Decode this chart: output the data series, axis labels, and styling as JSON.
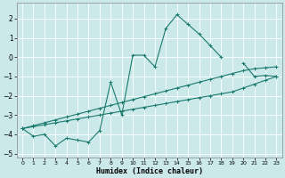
{
  "xlabel": "Humidex (Indice chaleur)",
  "xlim": [
    -0.5,
    23.5
  ],
  "ylim": [
    -5.2,
    2.8
  ],
  "yticks": [
    -5,
    -4,
    -3,
    -2,
    -1,
    0,
    1,
    2
  ],
  "xticks": [
    0,
    1,
    2,
    3,
    4,
    5,
    6,
    7,
    8,
    9,
    10,
    11,
    12,
    13,
    14,
    15,
    16,
    17,
    18,
    19,
    20,
    21,
    22,
    23
  ],
  "background_color": "#cce9e9",
  "grid_color": "#afd8d8",
  "line_color": "#1a7a6e",
  "series": [
    {
      "x": [
        0,
        1,
        2,
        3,
        4,
        5,
        6,
        7,
        8,
        9,
        10,
        11,
        12,
        13,
        14,
        15,
        16,
        17,
        18,
        19,
        20,
        21,
        22,
        23
      ],
      "y": [
        -3.7,
        -4.1,
        -4.0,
        -4.6,
        -4.2,
        -4.3,
        -4.4,
        -3.8,
        -1.3,
        -3.0,
        0.1,
        0.1,
        -0.5,
        1.5,
        2.2,
        1.7,
        1.2,
        0.6,
        0.0,
        null,
        -0.3,
        -1.0,
        -0.95,
        -1.0
      ],
      "marker": "+"
    },
    {
      "x": [
        0,
        1,
        2,
        3,
        4,
        5,
        6,
        7,
        8,
        9,
        10,
        11,
        12,
        13,
        14,
        15,
        16,
        17,
        18,
        19,
        20,
        21,
        22,
        23
      ],
      "y": [
        -3.7,
        -3.6,
        -3.5,
        -3.4,
        -3.3,
        -3.2,
        -3.1,
        -3.0,
        -2.9,
        -2.8,
        -2.7,
        -2.6,
        -2.5,
        -2.4,
        -2.3,
        -2.2,
        -2.1,
        -2.0,
        -1.9,
        -1.8,
        -1.6,
        -1.4,
        -1.2,
        -1.0
      ],
      "marker": "+"
    },
    {
      "x": [
        0,
        1,
        2,
        3,
        4,
        5,
        6,
        7,
        8,
        9,
        10,
        11,
        12,
        13,
        14,
        15,
        16,
        17,
        18,
        19,
        20,
        21,
        22,
        23
      ],
      "y": [
        -3.7,
        -3.55,
        -3.4,
        -3.25,
        -3.1,
        -2.95,
        -2.8,
        -2.65,
        -2.5,
        -2.35,
        -2.2,
        -2.05,
        -1.9,
        -1.75,
        -1.6,
        -1.45,
        -1.3,
        -1.15,
        -1.0,
        -0.85,
        -0.7,
        -0.6,
        -0.55,
        -0.5
      ],
      "marker": "+"
    }
  ]
}
